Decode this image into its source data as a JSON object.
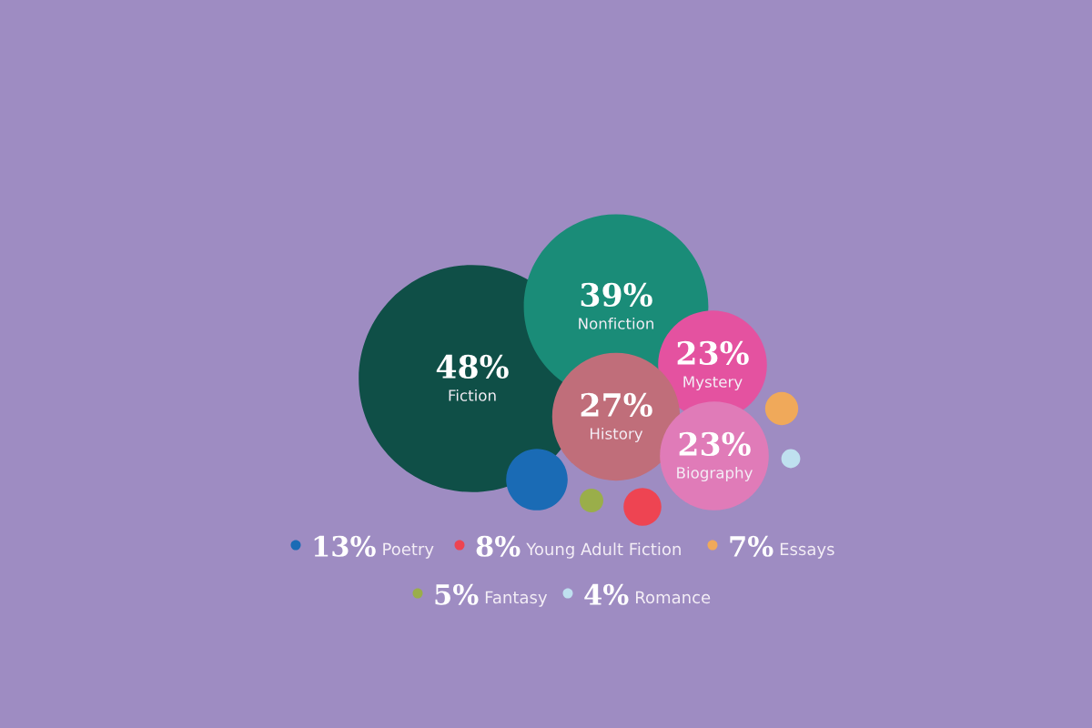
{
  "chart_data": {
    "type": "other",
    "categories": [
      "Fiction",
      "Nonfiction",
      "Mystery",
      "History",
      "Biography",
      "Poetry",
      "Young Adult Fiction",
      "Essays",
      "Fantasy",
      "Romance"
    ],
    "values": [
      48,
      39,
      23,
      27,
      23,
      13,
      8,
      7,
      5,
      4
    ],
    "value_labels": [
      "48%",
      "39%",
      "23%",
      "27%",
      "23%",
      "13%",
      "8%",
      "7%",
      "5%",
      "4%"
    ],
    "colors": [
      "#0f4f47",
      "#1a8c78",
      "#e452a0",
      "#c06e7a",
      "#e07bb8",
      "#1a6bb5",
      "#ee4452",
      "#f0a95a",
      "#9aae4a",
      "#bfe0ef"
    ]
  }
}
